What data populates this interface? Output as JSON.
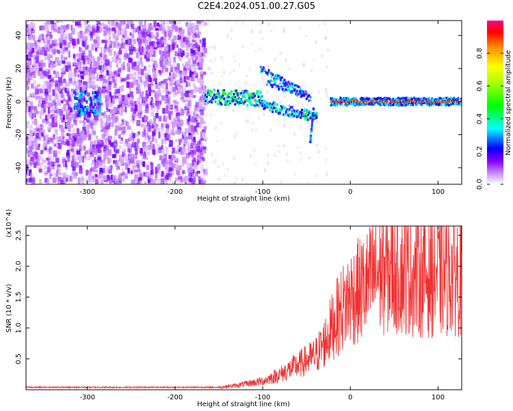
{
  "title": "C2E4.2024.051.00.27.G05",
  "chart_data": [
    {
      "type": "heatmap",
      "xlabel": "Height of straight line (km)",
      "ylabel": "Frequency (Hz)",
      "xlim": [
        -370,
        127
      ],
      "ylim": [
        -50,
        49
      ],
      "xticks": [
        -300,
        -200,
        -100,
        0,
        100
      ],
      "yticks": [
        -40,
        -20,
        0,
        20,
        40
      ],
      "colorbar": {
        "label": "Normalized spectral amplitude",
        "range": [
          0.0,
          1.0
        ],
        "ticks": [
          0.0,
          0.2,
          0.4,
          0.6,
          0.8
        ],
        "tick_labels": [
          "0.0",
          "0.2",
          "0.4",
          "0.6",
          "0.8"
        ]
      },
      "features": [
        {
          "x_range": [
            -370,
            -165
          ],
          "y_range": [
            -50,
            49
          ],
          "amplitude": 0.15
        },
        {
          "x_range": [
            -165,
            -20
          ],
          "y_center": 0,
          "amplitude": 0.45
        },
        {
          "x_range": [
            -20,
            127
          ],
          "y_center": 0,
          "amplitude": 0.9
        }
      ]
    },
    {
      "type": "line",
      "xlabel": "Height of straight line (km)",
      "ylabel": "SNR (10 * v/v)",
      "y_multiplier": "(x10^4)",
      "xlim": [
        -370,
        127
      ],
      "ylim": [
        0.0,
        2.65
      ],
      "xticks": [
        -300,
        -200,
        -100,
        0,
        100
      ],
      "yticks": [
        0.5,
        1.0,
        1.5,
        2.0,
        2.5
      ],
      "ytick_labels": [
        "0.5",
        "1.0",
        "1.5",
        "2.0",
        "2.5"
      ],
      "line_color": "#ee3333",
      "envelope": {
        "x": [
          -370,
          -150,
          -130,
          -100,
          -80,
          -60,
          -40,
          -30,
          -20,
          -10,
          0,
          20,
          30,
          50,
          80,
          100,
          127
        ],
        "y": [
          0.04,
          0.04,
          0.07,
          0.14,
          0.25,
          0.4,
          0.55,
          0.75,
          1.05,
          1.3,
          1.5,
          1.7,
          1.9,
          1.95,
          1.85,
          1.85,
          1.9
        ]
      }
    }
  ]
}
